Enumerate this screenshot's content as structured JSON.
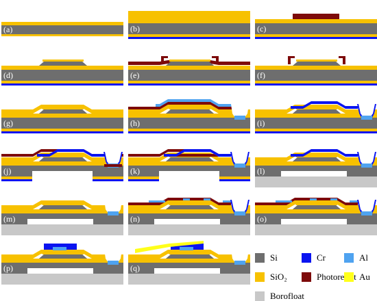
{
  "panels": [
    {
      "label": "(a)"
    },
    {
      "label": "(b)"
    },
    {
      "label": "(c)"
    },
    {
      "label": "(d)"
    },
    {
      "label": "(e)"
    },
    {
      "label": "(f)"
    },
    {
      "label": "(g)"
    },
    {
      "label": "(h)"
    },
    {
      "label": "(i)"
    },
    {
      "label": "(j)"
    },
    {
      "label": "(k)"
    },
    {
      "label": "(l)"
    },
    {
      "label": "(m)"
    },
    {
      "label": "(n)"
    },
    {
      "label": "(o)"
    },
    {
      "label": "(p)"
    },
    {
      "label": "(q)"
    }
  ],
  "legend": [
    {
      "label": "Si"
    },
    {
      "label": "Cr"
    },
    {
      "label": "Al"
    },
    {
      "label": "SiO₂"
    },
    {
      "label": "Photoresist"
    },
    {
      "label": "Au"
    },
    {
      "label": "Borofloat"
    }
  ]
}
